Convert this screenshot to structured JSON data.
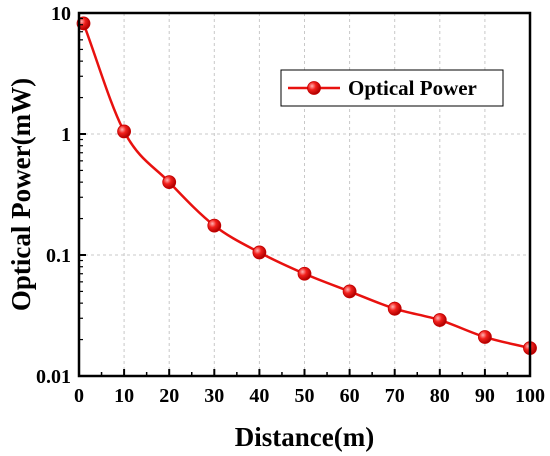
{
  "chart_data": {
    "type": "line",
    "xlabel": "Distance(m)",
    "ylabel": "Optical Power(mW)",
    "xlim": [
      0,
      100
    ],
    "ylim": [
      0.01,
      10
    ],
    "yscale": "log",
    "xticks": [
      0,
      10,
      20,
      30,
      40,
      50,
      60,
      70,
      80,
      90,
      100
    ],
    "xtick_labels": [
      "0",
      "10",
      "20",
      "30",
      "40",
      "50",
      "60",
      "70",
      "80",
      "90",
      "100"
    ],
    "yticks": [
      0.01,
      0.1,
      1,
      10
    ],
    "ytick_labels": [
      "0.01",
      "0.1",
      "1",
      "10"
    ],
    "grid": true,
    "legend_position": "top-right",
    "series": [
      {
        "name": "Optical Power",
        "color": "#e8110f",
        "x": [
          1,
          10,
          20,
          30,
          40,
          50,
          60,
          70,
          80,
          90,
          100
        ],
        "y": [
          8.2,
          1.05,
          0.4,
          0.175,
          0.105,
          0.07,
          0.05,
          0.036,
          0.029,
          0.021,
          0.017
        ]
      }
    ]
  }
}
